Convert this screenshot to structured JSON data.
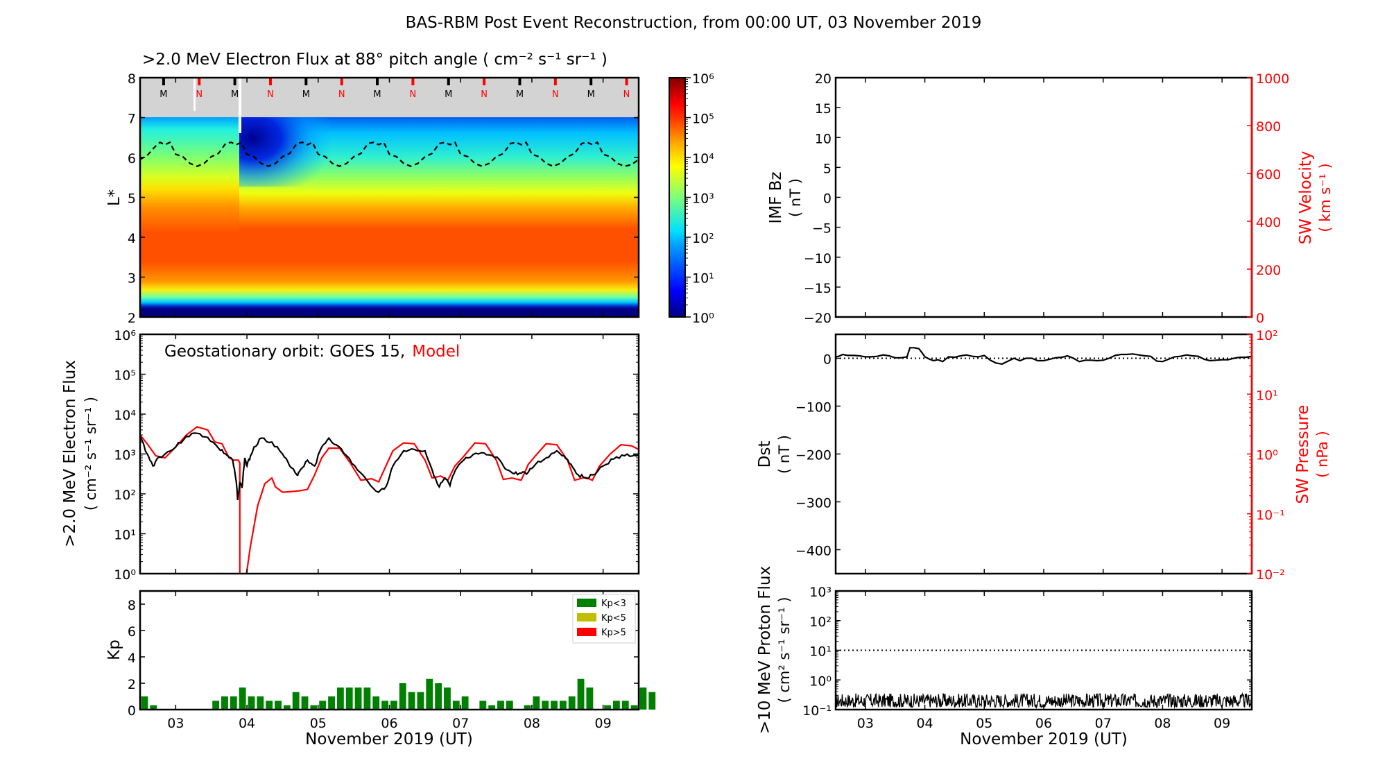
{
  "figure": {
    "title": "BAS-RBM Post Event Reconstruction, from 00:00 UT, 03 November 2019",
    "xlabel": "November 2019 (UT)",
    "x_ticks": [
      "03",
      "04",
      "05",
      "06",
      "07",
      "08",
      "09"
    ],
    "x_range_days": [
      2.5,
      9.5
    ]
  },
  "chart_data": [
    {
      "id": "lstar",
      "type": "heatmap",
      "title": ">2.0 MeV Electron Flux at 88° pitch angle ( cm⁻² s⁻¹ sr⁻¹ )",
      "ylabel": "L*",
      "ylim": [
        2,
        8
      ],
      "y_ticks": [
        "2",
        "3",
        "4",
        "5",
        "6",
        "7",
        "8"
      ],
      "colorbar": {
        "scale": "log",
        "range": [
          1,
          1000000
        ],
        "tick_labels": [
          "10⁰",
          "10¹",
          "10²",
          "10³",
          "10⁴",
          "10⁵",
          "10⁶"
        ],
        "colormap": "jet"
      },
      "no_data_band_L": [
        7,
        8
      ],
      "no_data_color": "#d3d3d3",
      "mn_markers": {
        "labels": [
          "M",
          "N",
          "M",
          "N",
          "M",
          "N",
          "M",
          "N",
          "M",
          "N",
          "M",
          "N",
          "M",
          "N"
        ],
        "days": [
          2.83,
          3.33,
          3.83,
          4.33,
          4.83,
          5.33,
          5.83,
          6.33,
          6.83,
          7.33,
          7.83,
          8.33,
          8.83,
          9.33
        ],
        "m_color": "#000000",
        "n_color": "#ff0000"
      },
      "geo_Lstar_dashed": {
        "days": [
          2.5,
          2.6,
          2.7,
          2.78,
          2.85,
          2.92,
          3.0,
          3.1,
          3.2,
          3.3,
          3.4,
          3.5,
          3.6,
          3.7,
          3.78,
          3.85,
          3.92,
          4.0,
          4.1,
          4.2,
          4.3,
          4.4,
          4.5,
          4.6,
          4.7,
          4.78,
          4.85,
          4.92,
          5.0,
          5.1,
          5.2,
          5.3,
          5.4,
          5.5,
          5.6,
          5.7,
          5.78,
          5.85,
          5.92,
          6.0,
          6.1,
          6.2,
          6.3,
          6.4,
          6.5,
          6.6,
          6.7,
          6.78,
          6.85,
          6.92,
          7.0,
          7.1,
          7.2,
          7.3,
          7.4,
          7.5,
          7.6,
          7.7,
          7.78,
          7.85,
          7.92,
          8.0,
          8.1,
          8.2,
          8.3,
          8.4,
          8.5,
          8.6,
          8.7,
          8.78,
          8.85,
          8.92,
          9.0,
          9.1,
          9.2,
          9.3,
          9.4,
          9.5
        ],
        "L": [
          5.95,
          6.05,
          6.25,
          6.38,
          6.32,
          6.38,
          6.08,
          6.02,
          5.85,
          5.78,
          5.85,
          6.02,
          6.1,
          6.35,
          6.38,
          6.32,
          6.38,
          6.08,
          6.02,
          5.85,
          5.78,
          5.85,
          6.02,
          6.1,
          6.35,
          6.38,
          6.32,
          6.38,
          6.08,
          6.02,
          5.85,
          5.78,
          5.85,
          6.02,
          6.1,
          6.35,
          6.38,
          6.32,
          6.38,
          6.08,
          6.02,
          5.85,
          5.78,
          5.85,
          6.02,
          6.1,
          6.35,
          6.38,
          6.32,
          6.38,
          6.08,
          6.02,
          5.85,
          5.78,
          5.85,
          6.02,
          6.1,
          6.35,
          6.38,
          6.32,
          6.38,
          6.08,
          6.02,
          5.85,
          5.78,
          5.85,
          6.02,
          6.1,
          6.35,
          6.38,
          6.32,
          6.38,
          6.08,
          6.02,
          5.85,
          5.78,
          5.82,
          5.95
        ]
      },
      "dropout_day": 3.9
    },
    {
      "id": "goes",
      "type": "line",
      "annotation": {
        "prefix": "Geostationary orbit:   GOES 15,",
        "model": "Model"
      },
      "ylabel": ">2.0 MeV Electron Flux",
      "ylabel_units": "( cm⁻² s⁻¹ sr⁻¹ )",
      "yscale": "log",
      "ylim": [
        1,
        1000000
      ],
      "y_tick_labels": [
        "10⁰",
        "10¹",
        "10²",
        "10³",
        "10⁴",
        "10⁵",
        "10⁶"
      ],
      "series": [
        {
          "name": "GOES 15",
          "color": "#000000",
          "x": [
            2.5,
            2.6,
            2.68,
            2.75,
            2.85,
            3.0,
            3.15,
            3.3,
            3.45,
            3.6,
            3.7,
            3.8,
            3.85,
            3.87,
            3.9,
            3.93,
            3.97,
            4.0,
            4.05,
            4.1,
            4.2,
            4.35,
            4.5,
            4.6,
            4.7,
            4.75,
            4.85,
            4.95,
            5.05,
            5.15,
            5.25,
            5.4,
            5.55,
            5.7,
            5.85,
            5.95,
            6.05,
            6.2,
            6.35,
            6.5,
            6.6,
            6.7,
            6.78,
            6.85,
            6.9,
            7.0,
            7.1,
            7.25,
            7.4,
            7.55,
            7.65,
            7.75,
            7.85,
            7.95,
            8.05,
            8.2,
            8.35,
            8.45,
            8.55,
            8.65,
            8.75,
            8.85,
            9.0,
            9.15,
            9.3,
            9.45,
            9.5
          ],
          "y": [
            2800,
            1000,
            500,
            800,
            1000,
            1500,
            2800,
            3300,
            2600,
            1400,
            1000,
            700,
            200,
            70,
            200,
            140,
            800,
            500,
            900,
            1500,
            2500,
            2000,
            1000,
            500,
            300,
            400,
            700,
            500,
            1500,
            2500,
            1700,
            900,
            400,
            200,
            110,
            150,
            500,
            1200,
            1300,
            1200,
            400,
            150,
            250,
            160,
            300,
            600,
            800,
            1000,
            950,
            700,
            400,
            320,
            330,
            350,
            550,
            800,
            1200,
            900,
            550,
            300,
            250,
            300,
            500,
            750,
            900,
            950,
            900
          ]
        },
        {
          "name": "Model",
          "color": "#ff0000",
          "x": [
            2.5,
            2.6,
            2.72,
            2.85,
            3.0,
            3.15,
            3.3,
            3.45,
            3.55,
            3.65,
            3.75,
            3.82,
            3.88,
            3.9,
            3.9,
            3.97,
            4.05,
            4.15,
            4.25,
            4.35,
            4.4,
            4.5,
            4.65,
            4.75,
            4.85,
            4.95,
            5.05,
            5.15,
            5.3,
            5.45,
            5.6,
            5.75,
            5.85,
            5.95,
            6.05,
            6.2,
            6.35,
            6.5,
            6.6,
            6.72,
            6.82,
            6.92,
            7.05,
            7.2,
            7.35,
            7.5,
            7.6,
            7.72,
            7.85,
            7.95,
            8.05,
            8.2,
            8.35,
            8.5,
            8.6,
            8.75,
            8.85,
            8.95,
            9.1,
            9.25,
            9.4,
            9.5
          ],
          "y": [
            3000,
            1800,
            900,
            800,
            1500,
            3000,
            4800,
            4000,
            2000,
            1800,
            800,
            700,
            700,
            600,
            0.5,
            0.5,
            5,
            50,
            180,
            250,
            150,
            110,
            115,
            120,
            130,
            300,
            800,
            1400,
            1400,
            600,
            220,
            240,
            200,
            500,
            1200,
            1900,
            1800,
            700,
            250,
            280,
            220,
            500,
            900,
            1900,
            1800,
            700,
            230,
            250,
            220,
            550,
            900,
            1800,
            1700,
            700,
            220,
            260,
            220,
            500,
            1000,
            1700,
            1600,
            1300
          ]
        }
      ]
    },
    {
      "id": "kp",
      "type": "bar",
      "ylabel": "Kp",
      "ylim": [
        0,
        9
      ],
      "y_ticks": [
        "0",
        "2",
        "4",
        "6",
        "8"
      ],
      "bar_width_hours": 3,
      "start_day": 2.5,
      "legend": {
        "placement": "top-right",
        "entries": [
          {
            "label": "Kp<3",
            "color": "#008000"
          },
          {
            "label": "Kp<5",
            "color": "#bfbf00"
          },
          {
            "label": "Kp>5",
            "color": "#ff0000"
          }
        ]
      },
      "values": [
        1.0,
        0.33,
        0,
        0,
        0,
        0,
        0,
        0,
        0.67,
        1.0,
        1.0,
        1.67,
        1.0,
        1.0,
        0.67,
        0.67,
        0.33,
        1.33,
        1.0,
        0.33,
        0.67,
        1.0,
        1.67,
        1.67,
        1.67,
        1.67,
        1.0,
        0.67,
        0.67,
        2.0,
        1.33,
        1.33,
        2.33,
        2.0,
        1.67,
        0.67,
        1.0,
        0,
        0.67,
        0.33,
        0.67,
        0.67,
        0,
        0.33,
        1.0,
        0.67,
        0.67,
        0.67,
        1.0,
        2.33,
        1.67,
        0,
        0.33,
        0.67,
        0.67,
        0.33,
        1.67,
        1.33
      ]
    },
    {
      "id": "imf",
      "type": "line",
      "ylabel": "IMF Bz",
      "ylabel_units": "( nT )",
      "ylim": [
        -20,
        20
      ],
      "y_ticks": [
        "−20",
        "−15",
        "−10",
        "−5",
        "0",
        "5",
        "10",
        "15",
        "20"
      ],
      "y2label": "SW Velocity",
      "y2label_units": "( km s⁻¹ )",
      "y2lim": [
        0,
        1000
      ],
      "y2_ticks": [
        "0",
        "200",
        "400",
        "600",
        "800",
        "1000"
      ],
      "series": []
    },
    {
      "id": "dst",
      "type": "line",
      "ylabel": "Dst",
      "ylabel_units": "( nT )",
      "ylim": [
        -450,
        50
      ],
      "y_ticks": [
        "−400",
        "−300",
        "−200",
        "−100",
        "0"
      ],
      "y2label": "SW Pressure",
      "y2label_units": "( nPa )",
      "y2scale": "log",
      "y2lim": [
        0.01,
        100
      ],
      "y2_tick_labels": [
        "10⁻²",
        "10⁻¹",
        "10⁰",
        "10¹",
        "10²"
      ],
      "reference_line": 0,
      "series": [
        {
          "name": "Dst",
          "color": "#000000",
          "x": [
            2.5,
            2.55,
            2.62,
            2.7,
            2.8,
            2.9,
            3.0,
            3.1,
            3.2,
            3.3,
            3.4,
            3.5,
            3.6,
            3.7,
            3.75,
            3.82,
            3.9,
            3.95,
            4.0,
            4.08,
            4.15,
            4.22,
            4.3,
            4.4,
            4.5,
            4.6,
            4.7,
            4.8,
            4.9,
            5.0,
            5.1,
            5.2,
            5.3,
            5.4,
            5.5,
            5.6,
            5.7,
            5.8,
            5.9,
            6.0,
            6.1,
            6.2,
            6.3,
            6.4,
            6.5,
            6.6,
            6.7,
            6.8,
            6.9,
            7.0,
            7.1,
            7.2,
            7.3,
            7.4,
            7.5,
            7.6,
            7.7,
            7.8,
            7.9,
            8.0,
            8.1,
            8.2,
            8.3,
            8.4,
            8.5,
            8.6,
            8.7,
            8.8,
            8.9,
            9.0,
            9.1,
            9.2,
            9.3,
            9.4,
            9.5
          ],
          "y": [
            3,
            4,
            8,
            6,
            6,
            5,
            3,
            3,
            4,
            7,
            5,
            1,
            1,
            3,
            22,
            22,
            20,
            12,
            3,
            -2,
            -5,
            -3,
            -7,
            3,
            2,
            5,
            7,
            4,
            3,
            6,
            -4,
            -10,
            -12,
            -6,
            0,
            -5,
            0,
            0,
            -5,
            -5,
            -2,
            1,
            2,
            5,
            0,
            -7,
            -4,
            -4,
            -5,
            -4,
            0,
            6,
            8,
            8,
            9,
            7,
            5,
            4,
            -6,
            -7,
            -2,
            3,
            4,
            7,
            5,
            4,
            -2,
            -5,
            -4,
            -3,
            -3,
            0,
            2,
            2,
            4
          ]
        }
      ]
    },
    {
      "id": "proton",
      "type": "line",
      "ylabel": ">10 MeV Proton Flux",
      "ylabel_units": "( cm² s⁻¹ sr⁻¹ )",
      "yscale": "log",
      "ylim": [
        0.1,
        1000
      ],
      "y_tick_labels": [
        "10⁻¹",
        "10⁰",
        "10¹",
        "10²",
        "10³"
      ],
      "threshold_line": 10,
      "series": [
        {
          "name": ">10 MeV protons",
          "color": "#000000",
          "description": "noisy baseline",
          "typical_range": [
            0.12,
            0.35
          ]
        }
      ]
    }
  ]
}
